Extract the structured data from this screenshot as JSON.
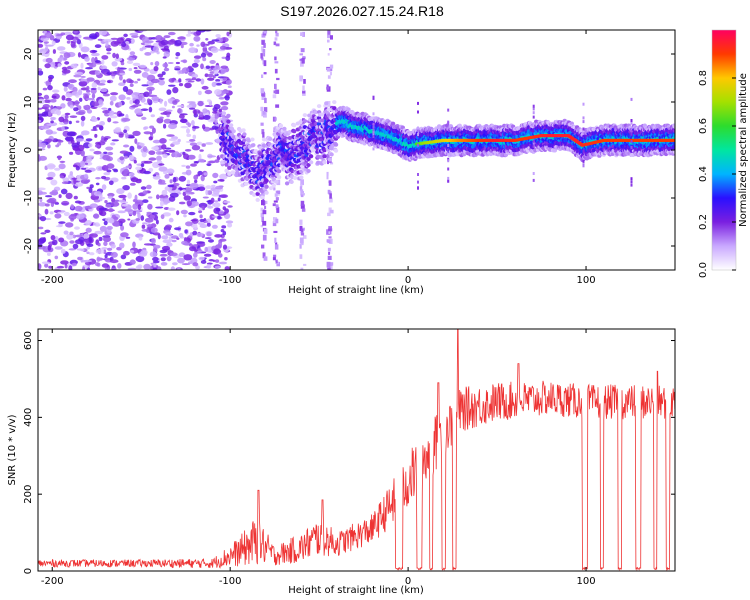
{
  "figure_title": "S197.2026.027.15.24.R18",
  "chart_data": [
    {
      "type": "heatmap",
      "panel": "spectrogram",
      "xlabel": "Height of straight line (km)",
      "ylabel": "Frequency (Hz)",
      "xlim": [
        -208,
        150
      ],
      "ylim": [
        -25,
        25
      ],
      "x_ticks": [
        -200,
        -100,
        0,
        100
      ],
      "x_tick_labels": [
        "-200",
        "-100",
        "0",
        "100"
      ],
      "y_ticks": [
        -20,
        -10,
        0,
        10,
        20
      ],
      "y_tick_labels": [
        "-20",
        "-10",
        "0",
        "10",
        "20"
      ],
      "colorbar": {
        "label": "Normalized spectral amplitude",
        "range": [
          0,
          1
        ],
        "ticks": [
          0.0,
          0.2,
          0.4,
          0.6,
          0.8
        ],
        "tick_labels": [
          "0.0",
          "0.2",
          "0.4",
          "0.6",
          "0.8"
        ],
        "stops": [
          {
            "v": 0.0,
            "color": "#ffffff"
          },
          {
            "v": 0.1,
            "color": "#c9a8ff"
          },
          {
            "v": 0.2,
            "color": "#7a1fe0"
          },
          {
            "v": 0.3,
            "color": "#2a10ff"
          },
          {
            "v": 0.4,
            "color": "#00b4ff"
          },
          {
            "v": 0.5,
            "color": "#00e6a0"
          },
          {
            "v": 0.6,
            "color": "#2ddc2d"
          },
          {
            "v": 0.7,
            "color": "#a4e000"
          },
          {
            "v": 0.8,
            "color": "#ffc800"
          },
          {
            "v": 0.9,
            "color": "#ff3a00"
          },
          {
            "v": 1.0,
            "color": "#ff0060"
          }
        ]
      },
      "ridge": [
        {
          "x": -105,
          "f": 3
        },
        {
          "x": -95,
          "f": -1
        },
        {
          "x": -85,
          "f": -5
        },
        {
          "x": -75,
          "f": -1
        },
        {
          "x": -65,
          "f": -1
        },
        {
          "x": -55,
          "f": 2
        },
        {
          "x": -45,
          "f": 4
        },
        {
          "x": -38,
          "f": 6
        },
        {
          "x": -30,
          "f": 5
        },
        {
          "x": -20,
          "f": 4
        },
        {
          "x": -10,
          "f": 3
        },
        {
          "x": 0,
          "f": 1
        },
        {
          "x": 20,
          "f": 2
        },
        {
          "x": 40,
          "f": 2
        },
        {
          "x": 60,
          "f": 2
        },
        {
          "x": 75,
          "f": 3
        },
        {
          "x": 90,
          "f": 3
        },
        {
          "x": 98,
          "f": 1
        },
        {
          "x": 110,
          "f": 2
        },
        {
          "x": 130,
          "f": 2
        },
        {
          "x": 150,
          "f": 2
        }
      ],
      "ridge_peak": [
        {
          "x": -38,
          "f": 6,
          "amp": 0.45
        },
        {
          "x": -20,
          "f": 4,
          "amp": 0.5
        },
        {
          "x": 0,
          "f": 1,
          "amp": 0.55
        },
        {
          "x": 10,
          "f": 2,
          "amp": 0.7
        },
        {
          "x": 30,
          "f": 2,
          "amp": 0.85
        },
        {
          "x": 50,
          "f": 2,
          "amp": 0.95
        },
        {
          "x": 65,
          "f": 2,
          "amp": 0.9
        },
        {
          "x": 80,
          "f": 3,
          "amp": 0.95
        },
        {
          "x": 90,
          "f": 3,
          "amp": 0.95
        },
        {
          "x": 110,
          "f": 2,
          "amp": 0.9
        },
        {
          "x": 130,
          "f": 2,
          "amp": 0.9
        },
        {
          "x": 145,
          "f": 2,
          "amp": 0.9
        }
      ]
    },
    {
      "type": "line",
      "panel": "snr",
      "xlabel": "Height of straight line (km)",
      "ylabel": "SNR (10 * v/v)",
      "xlim": [
        -208,
        150
      ],
      "ylim": [
        0,
        630
      ],
      "x_ticks": [
        -200,
        -100,
        0,
        100
      ],
      "x_tick_labels": [
        "-200",
        "-100",
        "0",
        "100"
      ],
      "y_ticks": [
        0,
        200,
        400,
        600
      ],
      "y_tick_labels": [
        "0",
        "200",
        "400",
        "600"
      ],
      "line_color": "#ee3333",
      "envelope": [
        {
          "x": -208,
          "base": 20,
          "amp": 15
        },
        {
          "x": -150,
          "base": 20,
          "amp": 15
        },
        {
          "x": -110,
          "base": 20,
          "amp": 20
        },
        {
          "x": -95,
          "base": 50,
          "amp": 60
        },
        {
          "x": -85,
          "base": 80,
          "amp": 100
        },
        {
          "x": -75,
          "base": 40,
          "amp": 40
        },
        {
          "x": -60,
          "base": 60,
          "amp": 60
        },
        {
          "x": -50,
          "base": 90,
          "amp": 80
        },
        {
          "x": -40,
          "base": 70,
          "amp": 50
        },
        {
          "x": -20,
          "base": 110,
          "amp": 60
        },
        {
          "x": -5,
          "base": 200,
          "amp": 100
        },
        {
          "x": 10,
          "base": 300,
          "amp": 130
        },
        {
          "x": 20,
          "base": 360,
          "amp": 100
        },
        {
          "x": 30,
          "base": 420,
          "amp": 90
        },
        {
          "x": 50,
          "base": 440,
          "amp": 80
        },
        {
          "x": 80,
          "base": 450,
          "amp": 70
        },
        {
          "x": 100,
          "base": 440,
          "amp": 70
        },
        {
          "x": 150,
          "base": 440,
          "amp": 70
        }
      ],
      "dropouts": [
        {
          "x0": -7,
          "x1": -3
        },
        {
          "x0": 5,
          "x1": 8
        },
        {
          "x0": 12,
          "x1": 14
        },
        {
          "x0": 19,
          "x1": 21
        },
        {
          "x0": 25,
          "x1": 27
        },
        {
          "x0": 98,
          "x1": 101
        },
        {
          "x0": 108,
          "x1": 110
        },
        {
          "x0": 118,
          "x1": 120
        },
        {
          "x0": 128,
          "x1": 131
        },
        {
          "x0": 138,
          "x1": 140
        },
        {
          "x0": 145,
          "x1": 147
        }
      ],
      "peaks": [
        {
          "x": 28,
          "y": 630
        },
        {
          "x": 17,
          "y": 490
        },
        {
          "x": -84,
          "y": 210
        },
        {
          "x": -48,
          "y": 185
        },
        {
          "x": 62,
          "y": 540
        },
        {
          "x": 140,
          "y": 520
        }
      ]
    }
  ]
}
